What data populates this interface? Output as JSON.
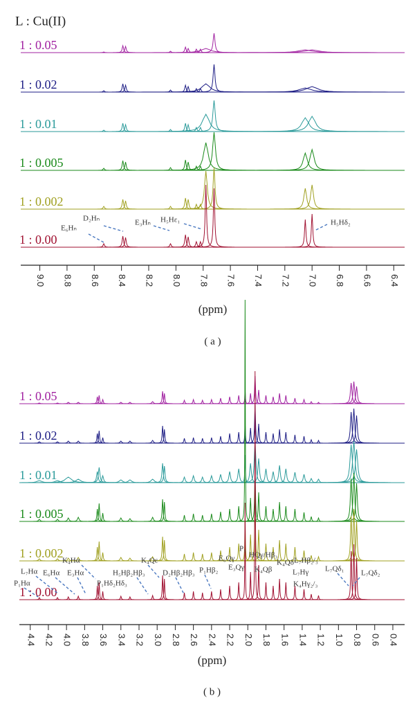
{
  "chart_data": [
    {
      "type": "spectrum",
      "title": "L : Cu(II)",
      "xlabel": "(ppm)",
      "panel_label": "( a )",
      "xlim": [
        9.14,
        6.32
      ],
      "xticks": [
        {
          "value": 9,
          "label": "9.0"
        },
        8.8,
        8.6,
        8.4,
        8.2,
        {
          "value": 8,
          "label": "8.0"
        },
        7.8,
        7.6,
        7.4,
        7.2,
        {
          "value": 7,
          "label": "7.0"
        },
        6.8,
        6.6,
        6.4
      ],
      "annotations": [
        "D₂Hₙ",
        "E₆Hₙ",
        "E₃Hₙ",
        "H₅Hε₁",
        "H₅Hδ₂"
      ],
      "series": [
        {
          "name": "1 : 0.05",
          "color": "#a020a0",
          "x": [
            8.53,
            8.39,
            8.37,
            8.04,
            7.93,
            7.91,
            7.85,
            7.82,
            7.78,
            7.72,
            7.05,
            7.0
          ],
          "values": [
            1,
            10,
            9,
            2,
            8,
            6,
            5,
            5,
            6,
            28,
            4,
            4
          ],
          "widths": [
            0.006,
            0.006,
            0.006,
            0.006,
            0.006,
            0.006,
            0.006,
            0.006,
            0.04,
            0.008,
            0.06,
            0.06
          ]
        },
        {
          "name": "1 : 0.02",
          "color": "#1c1c84",
          "x": [
            8.53,
            8.39,
            8.37,
            8.04,
            7.93,
            7.91,
            7.85,
            7.82,
            7.78,
            7.72,
            7.05,
            7.0
          ],
          "values": [
            2,
            12,
            10,
            3,
            10,
            8,
            5,
            5,
            12,
            40,
            6,
            8
          ],
          "widths": [
            0.006,
            0.006,
            0.006,
            0.006,
            0.006,
            0.006,
            0.006,
            0.006,
            0.035,
            0.008,
            0.05,
            0.05
          ]
        },
        {
          "name": "1 : 0.01",
          "color": "#2a9a9a",
          "x": [
            8.53,
            8.39,
            8.37,
            8.04,
            7.93,
            7.91,
            7.85,
            7.82,
            7.78,
            7.72,
            7.05,
            7.0
          ],
          "values": [
            2,
            12,
            10,
            3,
            12,
            10,
            6,
            6,
            25,
            45,
            20,
            22
          ],
          "widths": [
            0.006,
            0.006,
            0.006,
            0.006,
            0.006,
            0.006,
            0.006,
            0.006,
            0.03,
            0.01,
            0.03,
            0.03
          ]
        },
        {
          "name": "1 : 0.005",
          "color": "#1a8a1a",
          "x": [
            8.53,
            8.39,
            8.37,
            8.04,
            7.93,
            7.91,
            7.85,
            7.82,
            7.78,
            7.72,
            7.05,
            7.0
          ],
          "values": [
            3,
            14,
            12,
            4,
            15,
            12,
            6,
            6,
            40,
            55,
            25,
            30
          ],
          "widths": [
            0.006,
            0.006,
            0.006,
            0.006,
            0.006,
            0.006,
            0.006,
            0.006,
            0.02,
            0.012,
            0.018,
            0.018
          ]
        },
        {
          "name": "1 : 0.002",
          "color": "#a0a020",
          "x": [
            8.53,
            8.39,
            8.37,
            8.04,
            7.93,
            7.91,
            7.85,
            7.82,
            7.78,
            7.72,
            7.05,
            7.0
          ],
          "values": [
            4,
            14,
            12,
            4,
            16,
            14,
            7,
            7,
            55,
            60,
            30,
            35
          ],
          "widths": [
            0.006,
            0.006,
            0.006,
            0.006,
            0.006,
            0.006,
            0.006,
            0.006,
            0.012,
            0.008,
            0.012,
            0.012
          ]
        },
        {
          "name": "1 : 0.00",
          "color": "#a01030",
          "x": [
            8.53,
            8.39,
            8.37,
            8.04,
            7.93,
            7.91,
            7.85,
            7.82,
            7.78,
            7.72,
            7.05,
            7.0
          ],
          "values": [
            5,
            16,
            14,
            5,
            18,
            15,
            8,
            8,
            90,
            85,
            40,
            48
          ],
          "widths": [
            0.006,
            0.006,
            0.006,
            0.006,
            0.006,
            0.006,
            0.006,
            0.006,
            0.006,
            0.006,
            0.006,
            0.006
          ]
        }
      ]
    },
    {
      "type": "spectrum",
      "xlabel": "(ppm)",
      "panel_label": "( b )",
      "xlim": [
        4.52,
        0.27
      ],
      "xticks": [
        4.4,
        4.2,
        {
          "value": 4,
          "label": "4.0"
        },
        3.8,
        3.6,
        3.4,
        3.2,
        {
          "value": 3,
          "label": "3.0"
        },
        2.8,
        2.6,
        2.4,
        2.2,
        {
          "value": 2,
          "label": "2.0"
        },
        1.8,
        1.6,
        1.4,
        1.2,
        {
          "value": 1,
          "label": "1.0"
        },
        0.8,
        0.6,
        0.4
      ],
      "annotations": [
        "P₁Hα",
        "L₇Hα",
        "E₆Hα",
        "E₃Hα",
        "K₄Hα",
        "P₁Hδ₂Hδ₃",
        "H₅Hβ₂Hβ₃",
        "K₄Qε",
        "D₂Hβ₂Hβ₃",
        "P₁Hβ₂",
        "E₆Qγ",
        "E₃Qγ",
        "P₁",
        "HQγ/Hβ₃",
        "K₄Qβ",
        "K₄Qδ",
        "L₇Hβ₂/₃",
        "L₇Hγ",
        "K₄Hγ₂/₃",
        "L₇Qδ₁",
        "L₇Qδ₂"
      ],
      "series": [
        {
          "name": "1 : 0.05",
          "color": "#a020a0",
          "x": [
            4.3,
            4.1,
            3.98,
            3.87,
            3.66,
            3.64,
            3.6,
            3.4,
            3.3,
            3.05,
            2.94,
            2.92,
            2.7,
            2.6,
            2.5,
            2.4,
            2.3,
            2.2,
            2.1,
            2.03,
            1.97,
            1.92,
            1.88,
            1.8,
            1.72,
            1.65,
            1.58,
            1.48,
            1.38,
            1.3,
            1.22,
            0.86,
            0.83,
            0.8
          ],
          "values": [
            1,
            1,
            2,
            2,
            10,
            12,
            6,
            2,
            2,
            3,
            18,
            15,
            5,
            6,
            5,
            6,
            8,
            10,
            12,
            20,
            15,
            40,
            20,
            12,
            10,
            15,
            12,
            8,
            6,
            3,
            2,
            30,
            32,
            25
          ],
          "widths": [
            0.01,
            0.01,
            0.01,
            0.01,
            0.006,
            0.006,
            0.006,
            0.01,
            0.01,
            0.01,
            0.006,
            0.006,
            0.006,
            0.006,
            0.006,
            0.006,
            0.006,
            0.006,
            0.006,
            0.004,
            0.006,
            0.006,
            0.006,
            0.006,
            0.006,
            0.006,
            0.006,
            0.006,
            0.006,
            0.006,
            0.006,
            0.01,
            0.01,
            0.01
          ]
        },
        {
          "name": "1 : 0.02",
          "color": "#1c1c84",
          "x": [
            4.3,
            4.1,
            3.98,
            3.87,
            3.66,
            3.64,
            3.6,
            3.4,
            3.3,
            3.05,
            2.94,
            2.92,
            2.7,
            2.6,
            2.5,
            2.4,
            2.3,
            2.2,
            2.1,
            2.03,
            1.97,
            1.92,
            1.88,
            1.8,
            1.72,
            1.65,
            1.58,
            1.48,
            1.38,
            1.3,
            1.22,
            0.86,
            0.83,
            0.8
          ],
          "values": [
            2,
            2,
            3,
            3,
            14,
            18,
            8,
            3,
            3,
            4,
            25,
            20,
            7,
            8,
            7,
            8,
            10,
            14,
            16,
            30,
            22,
            55,
            28,
            16,
            14,
            20,
            16,
            12,
            10,
            5,
            4,
            45,
            50,
            40
          ],
          "widths": [
            0.01,
            0.01,
            0.01,
            0.01,
            0.006,
            0.006,
            0.006,
            0.01,
            0.01,
            0.01,
            0.006,
            0.006,
            0.006,
            0.006,
            0.006,
            0.006,
            0.006,
            0.006,
            0.006,
            0.004,
            0.006,
            0.006,
            0.006,
            0.006,
            0.006,
            0.006,
            0.006,
            0.006,
            0.006,
            0.006,
            0.006,
            0.01,
            0.01,
            0.01
          ]
        },
        {
          "name": "1 : 0.01",
          "color": "#2a9a9a",
          "x": [
            4.3,
            4.1,
            3.98,
            3.87,
            3.66,
            3.64,
            3.6,
            3.4,
            3.3,
            3.05,
            2.94,
            2.92,
            2.7,
            2.6,
            2.5,
            2.4,
            2.3,
            2.2,
            2.1,
            2.03,
            1.97,
            1.92,
            1.88,
            1.8,
            1.72,
            1.65,
            1.58,
            1.48,
            1.38,
            1.3,
            1.22,
            0.86,
            0.83,
            0.8
          ],
          "values": [
            3,
            3,
            8,
            5,
            16,
            22,
            10,
            4,
            4,
            5,
            28,
            24,
            8,
            10,
            8,
            10,
            12,
            16,
            20,
            40,
            28,
            60,
            35,
            20,
            16,
            25,
            20,
            15,
            12,
            6,
            5,
            55,
            60,
            48
          ],
          "widths": [
            0.03,
            0.03,
            0.04,
            0.03,
            0.01,
            0.01,
            0.01,
            0.02,
            0.02,
            0.02,
            0.008,
            0.008,
            0.01,
            0.01,
            0.01,
            0.01,
            0.01,
            0.01,
            0.01,
            0.004,
            0.01,
            0.01,
            0.01,
            0.01,
            0.01,
            0.01,
            0.01,
            0.01,
            0.01,
            0.01,
            0.01,
            0.015,
            0.015,
            0.015
          ]
        },
        {
          "name": "1 : 0.005",
          "color": "#1a8a1a",
          "x": [
            4.3,
            4.1,
            3.98,
            3.87,
            3.66,
            3.64,
            3.6,
            3.4,
            3.3,
            3.05,
            2.94,
            2.92,
            2.7,
            2.6,
            2.5,
            2.4,
            2.3,
            2.2,
            2.1,
            2.03,
            1.97,
            1.92,
            1.88,
            1.8,
            1.72,
            1.65,
            1.58,
            1.48,
            1.38,
            1.3,
            1.22,
            0.86,
            0.83,
            0.8
          ],
          "values": [
            3,
            3,
            5,
            6,
            18,
            26,
            12,
            5,
            4,
            6,
            32,
            28,
            9,
            11,
            9,
            11,
            14,
            18,
            22,
            320,
            34,
            70,
            42,
            22,
            18,
            28,
            22,
            18,
            13,
            7,
            5,
            62,
            70,
            55
          ],
          "widths": [
            0.01,
            0.01,
            0.01,
            0.01,
            0.006,
            0.006,
            0.006,
            0.01,
            0.01,
            0.01,
            0.006,
            0.006,
            0.006,
            0.006,
            0.006,
            0.006,
            0.006,
            0.006,
            0.006,
            0.003,
            0.006,
            0.006,
            0.006,
            0.006,
            0.006,
            0.006,
            0.006,
            0.006,
            0.006,
            0.006,
            0.006,
            0.01,
            0.01,
            0.01
          ]
        },
        {
          "name": "1 : 0.002",
          "color": "#a0a020",
          "x": [
            4.3,
            4.1,
            3.98,
            3.87,
            3.66,
            3.64,
            3.6,
            3.4,
            3.3,
            3.05,
            2.94,
            2.92,
            2.7,
            2.6,
            2.5,
            2.4,
            2.3,
            2.2,
            2.1,
            2.03,
            1.97,
            1.92,
            1.88,
            1.8,
            1.72,
            1.65,
            1.58,
            1.48,
            1.38,
            1.3,
            1.22,
            0.86,
            0.83,
            0.8
          ],
          "values": [
            3,
            3,
            4,
            5,
            20,
            28,
            12,
            5,
            4,
            6,
            35,
            30,
            10,
            12,
            10,
            12,
            15,
            20,
            25,
            60,
            38,
            80,
            45,
            25,
            20,
            30,
            25,
            20,
            15,
            8,
            6,
            65,
            75,
            58
          ],
          "widths": [
            0.01,
            0.01,
            0.01,
            0.01,
            0.006,
            0.006,
            0.006,
            0.01,
            0.01,
            0.01,
            0.006,
            0.006,
            0.006,
            0.006,
            0.006,
            0.006,
            0.006,
            0.006,
            0.006,
            0.004,
            0.006,
            0.006,
            0.006,
            0.006,
            0.006,
            0.006,
            0.006,
            0.006,
            0.006,
            0.006,
            0.006,
            0.008,
            0.008,
            0.008
          ]
        },
        {
          "name": "1 : 0.00",
          "color": "#a01030",
          "x": [
            4.3,
            4.1,
            3.98,
            3.87,
            3.66,
            3.64,
            3.6,
            3.4,
            3.3,
            3.05,
            2.94,
            2.92,
            2.7,
            2.6,
            2.5,
            2.4,
            2.3,
            2.2,
            2.1,
            2.03,
            1.97,
            1.92,
            1.88,
            1.8,
            1.72,
            1.65,
            1.58,
            1.48,
            1.38,
            1.3,
            1.22,
            0.86,
            0.83,
            0.8
          ],
          "values": [
            3,
            3,
            4,
            5,
            20,
            25,
            12,
            5,
            4,
            6,
            35,
            30,
            10,
            12,
            10,
            12,
            15,
            20,
            25,
            140,
            40,
            330,
            50,
            25,
            20,
            30,
            25,
            20,
            15,
            8,
            6,
            70,
            80,
            60
          ],
          "widths": [
            0.006,
            0.006,
            0.006,
            0.006,
            0.005,
            0.005,
            0.005,
            0.006,
            0.006,
            0.006,
            0.005,
            0.005,
            0.005,
            0.005,
            0.005,
            0.005,
            0.005,
            0.005,
            0.005,
            0.003,
            0.005,
            0.003,
            0.005,
            0.005,
            0.005,
            0.005,
            0.005,
            0.005,
            0.005,
            0.005,
            0.005,
            0.006,
            0.006,
            0.006
          ]
        }
      ]
    }
  ]
}
